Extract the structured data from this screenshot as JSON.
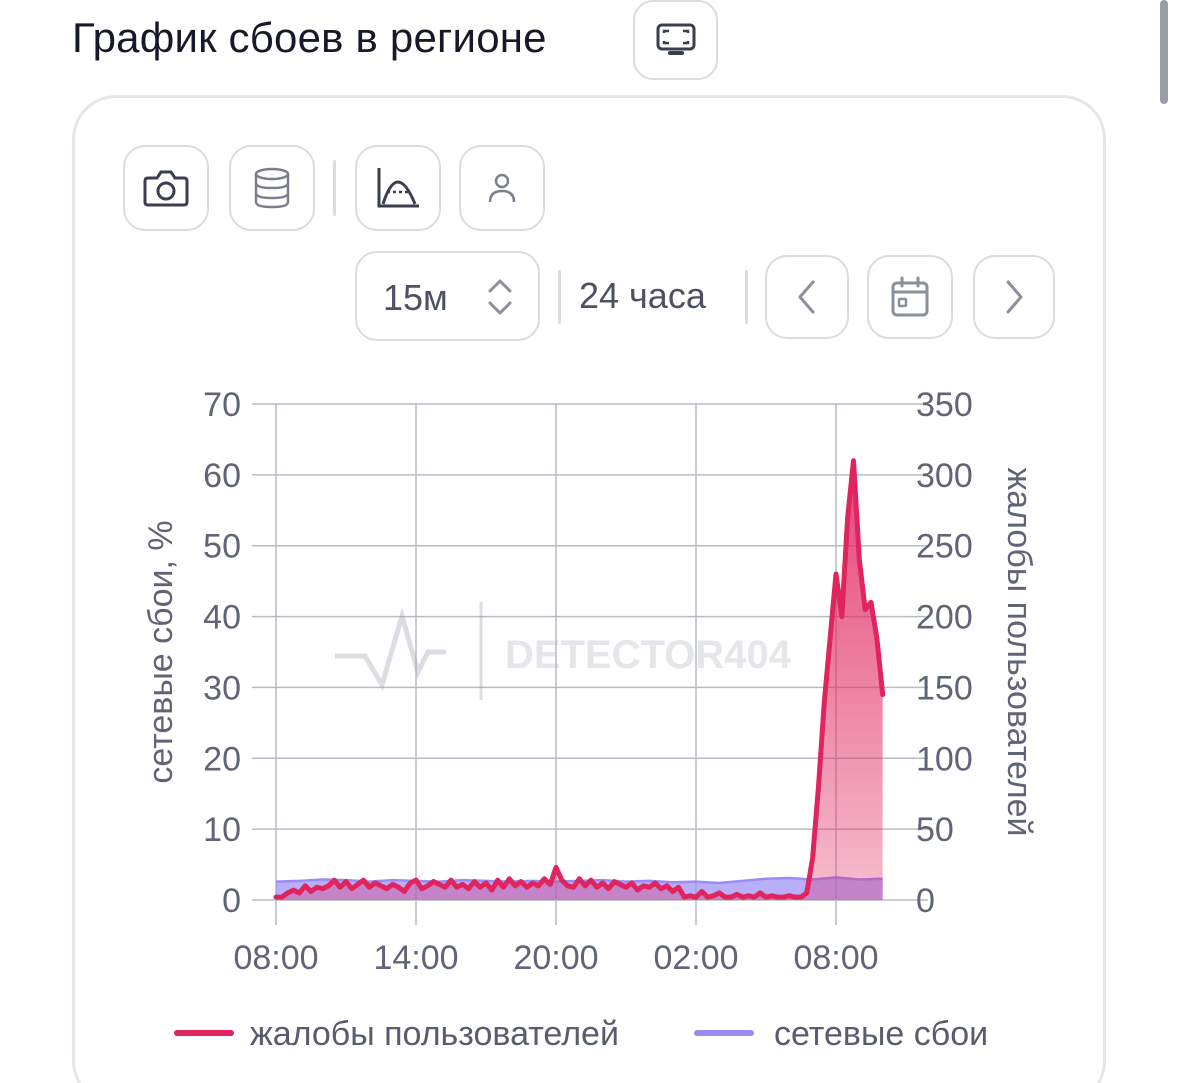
{
  "header": {
    "title": "График сбоев в регионе",
    "fullscreen_icon": "fullscreen-icon"
  },
  "toolbar": {
    "buttons": [
      {
        "icon": "camera-icon"
      },
      {
        "icon": "database-icon"
      },
      {
        "icon": "chart-curve-icon"
      },
      {
        "icon": "user-icon"
      }
    ]
  },
  "controls": {
    "interval_value": "15м",
    "range_label": "24 часа",
    "prev_icon": "chevron-left-icon",
    "calendar_icon": "calendar-icon",
    "next_icon": "chevron-right-icon"
  },
  "watermark": "DETECTOR404",
  "colors": {
    "complaints": "#e0245e",
    "network": "#9b8cf5"
  },
  "chart_data": {
    "type": "area",
    "x_ticks": [
      "08:00",
      "14:00",
      "20:00",
      "02:00",
      "08:00"
    ],
    "x_range_hours": [
      0,
      26
    ],
    "ylabel": "сетевые сбои, %",
    "ylim": [
      0,
      70
    ],
    "yticks": [
      0,
      10,
      20,
      30,
      40,
      50,
      60,
      70
    ],
    "y2label": "жалобы пользователей",
    "y2lim": [
      0,
      350
    ],
    "y2ticks": [
      0,
      50,
      100,
      150,
      200,
      250,
      300,
      350
    ],
    "grid": true,
    "legend_position": "bottom",
    "series": [
      {
        "name": "жалобы пользователей",
        "axis": "right",
        "points": [
          [
            0,
            2
          ],
          [
            0.25,
            2
          ],
          [
            0.5,
            5
          ],
          [
            0.75,
            7
          ],
          [
            1,
            5
          ],
          [
            1.25,
            10
          ],
          [
            1.5,
            6
          ],
          [
            1.75,
            9
          ],
          [
            2,
            8
          ],
          [
            2.25,
            10
          ],
          [
            2.5,
            14
          ],
          [
            2.75,
            9
          ],
          [
            3,
            13
          ],
          [
            3.25,
            8
          ],
          [
            3.5,
            11
          ],
          [
            3.75,
            14
          ],
          [
            4,
            9
          ],
          [
            4.25,
            12
          ],
          [
            4.5,
            10
          ],
          [
            4.75,
            8
          ],
          [
            5,
            11
          ],
          [
            5.25,
            9
          ],
          [
            5.5,
            6
          ],
          [
            5.75,
            12
          ],
          [
            6,
            14
          ],
          [
            6.25,
            8
          ],
          [
            6.5,
            10
          ],
          [
            6.75,
            13
          ],
          [
            7,
            11
          ],
          [
            7.25,
            9
          ],
          [
            7.5,
            14
          ],
          [
            7.75,
            9
          ],
          [
            8,
            11
          ],
          [
            8.25,
            8
          ],
          [
            8.5,
            13
          ],
          [
            8.75,
            9
          ],
          [
            9,
            12
          ],
          [
            9.25,
            7
          ],
          [
            9.5,
            14
          ],
          [
            9.75,
            9
          ],
          [
            10,
            15
          ],
          [
            10.25,
            10
          ],
          [
            10.5,
            13
          ],
          [
            10.75,
            9
          ],
          [
            11,
            12
          ],
          [
            11.25,
            10
          ],
          [
            11.5,
            15
          ],
          [
            11.75,
            11
          ],
          [
            12,
            23
          ],
          [
            12.25,
            14
          ],
          [
            12.5,
            10
          ],
          [
            12.75,
            9
          ],
          [
            13,
            15
          ],
          [
            13.25,
            10
          ],
          [
            13.5,
            14
          ],
          [
            13.75,
            9
          ],
          [
            14,
            12
          ],
          [
            14.25,
            8
          ],
          [
            14.5,
            13
          ],
          [
            14.75,
            11
          ],
          [
            15,
            9
          ],
          [
            15.25,
            12
          ],
          [
            15.5,
            7
          ],
          [
            15.75,
            10
          ],
          [
            16,
            9
          ],
          [
            16.25,
            12
          ],
          [
            16.5,
            8
          ],
          [
            16.75,
            10
          ],
          [
            17,
            6
          ],
          [
            17.25,
            9
          ],
          [
            17.5,
            2
          ],
          [
            17.75,
            3
          ],
          [
            18,
            2
          ],
          [
            18.25,
            6
          ],
          [
            18.5,
            2
          ],
          [
            18.75,
            3
          ],
          [
            19,
            5
          ],
          [
            19.25,
            2
          ],
          [
            19.5,
            2
          ],
          [
            19.75,
            4
          ],
          [
            20,
            2
          ],
          [
            20.25,
            3
          ],
          [
            20.5,
            2
          ],
          [
            20.75,
            5
          ],
          [
            21,
            2
          ],
          [
            21.25,
            3
          ],
          [
            21.5,
            2
          ],
          [
            21.75,
            2
          ],
          [
            22,
            3
          ],
          [
            22.25,
            2
          ],
          [
            22.5,
            2
          ],
          [
            22.75,
            5
          ],
          [
            23,
            30
          ],
          [
            23.25,
            80
          ],
          [
            23.5,
            140
          ],
          [
            23.75,
            185
          ],
          [
            24,
            230
          ],
          [
            24.25,
            200
          ],
          [
            24.5,
            270
          ],
          [
            24.75,
            310
          ],
          [
            25,
            240
          ],
          [
            25.25,
            205
          ],
          [
            25.5,
            210
          ],
          [
            25.75,
            185
          ],
          [
            26,
            145
          ]
        ]
      },
      {
        "name": "сетевые сбои",
        "axis": "left",
        "points": [
          [
            0,
            2.6
          ],
          [
            1,
            2.7
          ],
          [
            2,
            2.9
          ],
          [
            3,
            2.8
          ],
          [
            4,
            2.6
          ],
          [
            5,
            2.8
          ],
          [
            6,
            2.7
          ],
          [
            7,
            2.6
          ],
          [
            8,
            2.8
          ],
          [
            9,
            2.7
          ],
          [
            10,
            2.6
          ],
          [
            11,
            2.7
          ],
          [
            12,
            2.6
          ],
          [
            13,
            2.7
          ],
          [
            14,
            2.8
          ],
          [
            15,
            2.6
          ],
          [
            16,
            2.7
          ],
          [
            17,
            2.5
          ],
          [
            18,
            2.6
          ],
          [
            19,
            2.4
          ],
          [
            20,
            2.7
          ],
          [
            21,
            3.0
          ],
          [
            22,
            3.1
          ],
          [
            23,
            2.9
          ],
          [
            24,
            3.2
          ],
          [
            25,
            2.9
          ],
          [
            26,
            3.0
          ]
        ]
      }
    ]
  }
}
